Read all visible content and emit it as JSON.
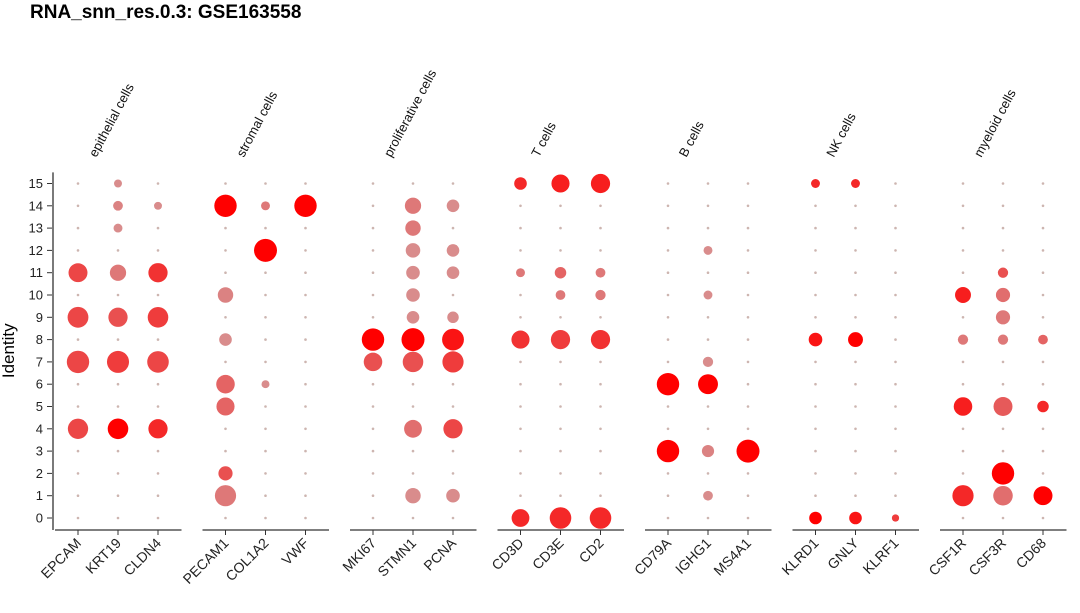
{
  "chart_data": {
    "type": "dot_plot",
    "title": "RNA_snn_res.0.3: GSE163558",
    "ylabel": "Identity",
    "identities": [
      "0",
      "1",
      "2",
      "3",
      "4",
      "5",
      "6",
      "7",
      "8",
      "9",
      "10",
      "11",
      "12",
      "13",
      "14",
      "15"
    ],
    "groups": [
      {
        "label": "epithelial cells",
        "genes": [
          "EPCAM",
          "KRT19",
          "CLDN4"
        ]
      },
      {
        "label": "stromal cells",
        "genes": [
          "PECAM1",
          "COL1A2",
          "VWF"
        ]
      },
      {
        "label": "proliferative cells",
        "genes": [
          "MKI67",
          "STMN1",
          "PCNA"
        ]
      },
      {
        "label": "T cells",
        "genes": [
          "CD3D",
          "CD3E",
          "CD2"
        ]
      },
      {
        "label": "B cells",
        "genes": [
          "CD79A",
          "IGHG1",
          "MS4A1"
        ]
      },
      {
        "label": "NK cells",
        "genes": [
          "KLRD1",
          "GNLY",
          "KLRF1"
        ]
      },
      {
        "label": "myeloid cells",
        "genes": [
          "CSF1R",
          "CSF3R",
          "CD68"
        ]
      }
    ],
    "color_scale": {
      "low": "#c8c8c8",
      "high": "#ff0000"
    },
    "dot_size_scale": "percent expressed",
    "dot_color_scale": "average expression",
    "points": [
      {
        "gene": "EPCAM",
        "id": 4,
        "pct": 0.78,
        "avg": 0.65
      },
      {
        "gene": "EPCAM",
        "id": 7,
        "pct": 0.95,
        "avg": 0.65
      },
      {
        "gene": "EPCAM",
        "id": 9,
        "pct": 0.82,
        "avg": 0.65
      },
      {
        "gene": "EPCAM",
        "id": 11,
        "pct": 0.68,
        "avg": 0.65
      },
      {
        "gene": "KRT19",
        "id": 4,
        "pct": 0.8,
        "avg": 1.0
      },
      {
        "gene": "KRT19",
        "id": 7,
        "pct": 0.92,
        "avg": 0.7
      },
      {
        "gene": "KRT19",
        "id": 9,
        "pct": 0.7,
        "avg": 0.6
      },
      {
        "gene": "KRT19",
        "id": 11,
        "pct": 0.5,
        "avg": 0.4
      },
      {
        "gene": "KRT19",
        "id": 13,
        "pct": 0.15,
        "avg": 0.3
      },
      {
        "gene": "KRT19",
        "id": 14,
        "pct": 0.18,
        "avg": 0.35
      },
      {
        "gene": "KRT19",
        "id": 15,
        "pct": 0.12,
        "avg": 0.3
      },
      {
        "gene": "CLDN4",
        "id": 4,
        "pct": 0.7,
        "avg": 0.8
      },
      {
        "gene": "CLDN4",
        "id": 7,
        "pct": 0.88,
        "avg": 0.65
      },
      {
        "gene": "CLDN4",
        "id": 9,
        "pct": 0.8,
        "avg": 0.7
      },
      {
        "gene": "CLDN4",
        "id": 11,
        "pct": 0.7,
        "avg": 0.75
      },
      {
        "gene": "CLDN4",
        "id": 14,
        "pct": 0.12,
        "avg": 0.3
      },
      {
        "gene": "PECAM1",
        "id": 1,
        "pct": 0.85,
        "avg": 0.4
      },
      {
        "gene": "PECAM1",
        "id": 2,
        "pct": 0.38,
        "avg": 0.6
      },
      {
        "gene": "PECAM1",
        "id": 5,
        "pct": 0.62,
        "avg": 0.5
      },
      {
        "gene": "PECAM1",
        "id": 6,
        "pct": 0.65,
        "avg": 0.5
      },
      {
        "gene": "PECAM1",
        "id": 8,
        "pct": 0.3,
        "avg": 0.3
      },
      {
        "gene": "PECAM1",
        "id": 10,
        "pct": 0.45,
        "avg": 0.35
      },
      {
        "gene": "PECAM1",
        "id": 14,
        "pct": 0.95,
        "avg": 1.0
      },
      {
        "gene": "COL1A2",
        "id": 6,
        "pct": 0.12,
        "avg": 0.3
      },
      {
        "gene": "COL1A2",
        "id": 12,
        "pct": 1.0,
        "avg": 1.0
      },
      {
        "gene": "COL1A2",
        "id": 14,
        "pct": 0.15,
        "avg": 0.4
      },
      {
        "gene": "VWF",
        "id": 14,
        "pct": 0.95,
        "avg": 1.0
      },
      {
        "gene": "MKI67",
        "id": 7,
        "pct": 0.65,
        "avg": 0.6
      },
      {
        "gene": "MKI67",
        "id": 8,
        "pct": 0.95,
        "avg": 1.0
      },
      {
        "gene": "STMN1",
        "id": 1,
        "pct": 0.45,
        "avg": 0.3
      },
      {
        "gene": "STMN1",
        "id": 4,
        "pct": 0.6,
        "avg": 0.45
      },
      {
        "gene": "STMN1",
        "id": 7,
        "pct": 0.8,
        "avg": 0.6
      },
      {
        "gene": "STMN1",
        "id": 8,
        "pct": 1.0,
        "avg": 1.0
      },
      {
        "gene": "STMN1",
        "id": 9,
        "pct": 0.3,
        "avg": 0.3
      },
      {
        "gene": "STMN1",
        "id": 10,
        "pct": 0.35,
        "avg": 0.3
      },
      {
        "gene": "STMN1",
        "id": 11,
        "pct": 0.35,
        "avg": 0.3
      },
      {
        "gene": "STMN1",
        "id": 12,
        "pct": 0.4,
        "avg": 0.3
      },
      {
        "gene": "STMN1",
        "id": 13,
        "pct": 0.45,
        "avg": 0.4
      },
      {
        "gene": "STMN1",
        "id": 14,
        "pct": 0.5,
        "avg": 0.4
      },
      {
        "gene": "PCNA",
        "id": 1,
        "pct": 0.35,
        "avg": 0.3
      },
      {
        "gene": "PCNA",
        "id": 4,
        "pct": 0.7,
        "avg": 0.65
      },
      {
        "gene": "PCNA",
        "id": 7,
        "pct": 0.85,
        "avg": 0.7
      },
      {
        "gene": "PCNA",
        "id": 8,
        "pct": 0.9,
        "avg": 0.9
      },
      {
        "gene": "PCNA",
        "id": 9,
        "pct": 0.25,
        "avg": 0.3
      },
      {
        "gene": "PCNA",
        "id": 11,
        "pct": 0.3,
        "avg": 0.3
      },
      {
        "gene": "PCNA",
        "id": 12,
        "pct": 0.3,
        "avg": 0.3
      },
      {
        "gene": "PCNA",
        "id": 14,
        "pct": 0.3,
        "avg": 0.3
      },
      {
        "gene": "CD3D",
        "id": 0,
        "pct": 0.6,
        "avg": 0.8
      },
      {
        "gene": "CD3D",
        "id": 8,
        "pct": 0.62,
        "avg": 0.75
      },
      {
        "gene": "CD3D",
        "id": 11,
        "pct": 0.15,
        "avg": 0.4
      },
      {
        "gene": "CD3D",
        "id": 15,
        "pct": 0.3,
        "avg": 0.8
      },
      {
        "gene": "CD3E",
        "id": 0,
        "pct": 0.88,
        "avg": 0.8
      },
      {
        "gene": "CD3E",
        "id": 8,
        "pct": 0.7,
        "avg": 0.7
      },
      {
        "gene": "CD3E",
        "id": 10,
        "pct": 0.18,
        "avg": 0.4
      },
      {
        "gene": "CD3E",
        "id": 11,
        "pct": 0.25,
        "avg": 0.5
      },
      {
        "gene": "CD3E",
        "id": 15,
        "pct": 0.62,
        "avg": 0.85
      },
      {
        "gene": "CD2",
        "id": 0,
        "pct": 0.88,
        "avg": 0.8
      },
      {
        "gene": "CD2",
        "id": 8,
        "pct": 0.7,
        "avg": 0.75
      },
      {
        "gene": "CD2",
        "id": 10,
        "pct": 0.2,
        "avg": 0.4
      },
      {
        "gene": "CD2",
        "id": 11,
        "pct": 0.18,
        "avg": 0.4
      },
      {
        "gene": "CD2",
        "id": 15,
        "pct": 0.7,
        "avg": 0.85
      },
      {
        "gene": "CD79A",
        "id": 3,
        "pct": 0.95,
        "avg": 1.0
      },
      {
        "gene": "CD79A",
        "id": 6,
        "pct": 0.95,
        "avg": 1.0
      },
      {
        "gene": "IGHG1",
        "id": 1,
        "pct": 0.18,
        "avg": 0.3
      },
      {
        "gene": "IGHG1",
        "id": 3,
        "pct": 0.28,
        "avg": 0.35
      },
      {
        "gene": "IGHG1",
        "id": 6,
        "pct": 0.75,
        "avg": 1.0
      },
      {
        "gene": "IGHG1",
        "id": 7,
        "pct": 0.2,
        "avg": 0.3
      },
      {
        "gene": "IGHG1",
        "id": 10,
        "pct": 0.15,
        "avg": 0.3
      },
      {
        "gene": "IGHG1",
        "id": 12,
        "pct": 0.15,
        "avg": 0.3
      },
      {
        "gene": "MS4A1",
        "id": 3,
        "pct": 1.0,
        "avg": 1.0
      },
      {
        "gene": "KLRD1",
        "id": 0,
        "pct": 0.3,
        "avg": 1.0
      },
      {
        "gene": "KLRD1",
        "id": 8,
        "pct": 0.35,
        "avg": 0.9
      },
      {
        "gene": "KLRD1",
        "id": 15,
        "pct": 0.15,
        "avg": 0.8
      },
      {
        "gene": "GNLY",
        "id": 0,
        "pct": 0.3,
        "avg": 0.9
      },
      {
        "gene": "GNLY",
        "id": 8,
        "pct": 0.42,
        "avg": 1.0
      },
      {
        "gene": "GNLY",
        "id": 15,
        "pct": 0.15,
        "avg": 0.8
      },
      {
        "gene": "KLRF1",
        "id": 0,
        "pct": 0.1,
        "avg": 0.7
      },
      {
        "gene": "CSF1R",
        "id": 1,
        "pct": 0.85,
        "avg": 0.8
      },
      {
        "gene": "CSF1R",
        "id": 5,
        "pct": 0.65,
        "avg": 0.85
      },
      {
        "gene": "CSF1R",
        "id": 8,
        "pct": 0.2,
        "avg": 0.4
      },
      {
        "gene": "CSF1R",
        "id": 10,
        "pct": 0.48,
        "avg": 0.85
      },
      {
        "gene": "CSF3R",
        "id": 1,
        "pct": 0.72,
        "avg": 0.45
      },
      {
        "gene": "CSF3R",
        "id": 2,
        "pct": 0.95,
        "avg": 1.0
      },
      {
        "gene": "CSF3R",
        "id": 5,
        "pct": 0.68,
        "avg": 0.55
      },
      {
        "gene": "CSF3R",
        "id": 8,
        "pct": 0.2,
        "avg": 0.4
      },
      {
        "gene": "CSF3R",
        "id": 9,
        "pct": 0.38,
        "avg": 0.4
      },
      {
        "gene": "CSF3R",
        "id": 10,
        "pct": 0.38,
        "avg": 0.45
      },
      {
        "gene": "CSF3R",
        "id": 11,
        "pct": 0.2,
        "avg": 0.6
      },
      {
        "gene": "CD68",
        "id": 1,
        "pct": 0.68,
        "avg": 1.0
      },
      {
        "gene": "CD68",
        "id": 5,
        "pct": 0.25,
        "avg": 0.8
      },
      {
        "gene": "CD68",
        "id": 8,
        "pct": 0.18,
        "avg": 0.5
      }
    ]
  }
}
